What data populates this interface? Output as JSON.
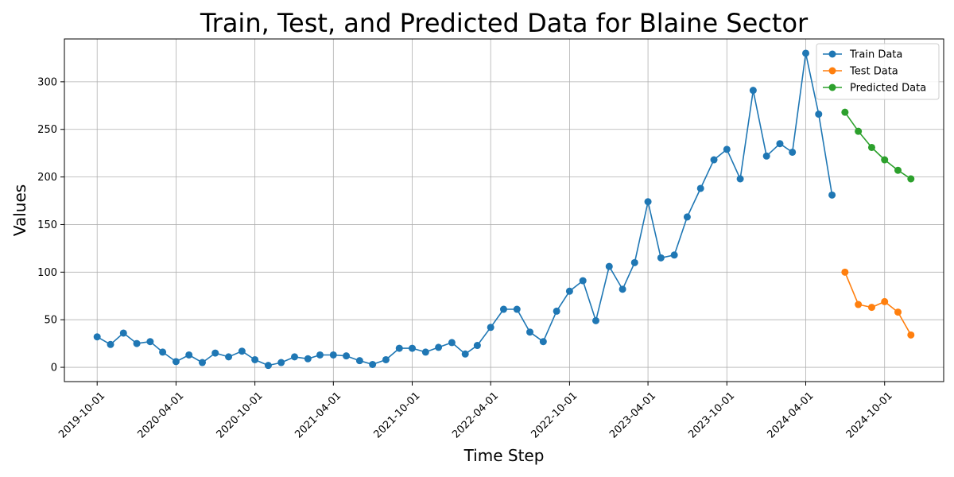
{
  "chart_data": {
    "type": "line",
    "title": "Train, Test, and Predicted Data for Blaine Sector",
    "xlabel": "Time Step",
    "ylabel": "Values",
    "x_tick_labels": [
      "2019-10-01",
      "2020-04-01",
      "2020-10-01",
      "2021-04-01",
      "2021-10-01",
      "2022-04-01",
      "2022-10-01",
      "2023-04-01",
      "2023-10-01",
      "2024-04-01",
      "2024-10-01"
    ],
    "y_ticks": [
      0,
      50,
      100,
      150,
      200,
      250,
      300
    ],
    "xlim": [
      "2019-07-17",
      "2025-02-15"
    ],
    "ylim": [
      -15,
      345
    ],
    "grid": true,
    "legend_position": "top-right",
    "series": [
      {
        "name": "Train Data",
        "color": "#1f77b4",
        "x": [
          "2019-10-01",
          "2019-11-01",
          "2019-12-01",
          "2020-01-01",
          "2020-02-01",
          "2020-03-01",
          "2020-04-01",
          "2020-05-01",
          "2020-06-01",
          "2020-07-01",
          "2020-08-01",
          "2020-09-01",
          "2020-10-01",
          "2020-11-01",
          "2020-12-01",
          "2021-01-01",
          "2021-02-01",
          "2021-03-01",
          "2021-04-01",
          "2021-05-01",
          "2021-06-01",
          "2021-07-01",
          "2021-08-01",
          "2021-09-01",
          "2021-10-01",
          "2021-11-01",
          "2021-12-01",
          "2022-01-01",
          "2022-02-01",
          "2022-03-01",
          "2022-04-01",
          "2022-05-01",
          "2022-06-01",
          "2022-07-01",
          "2022-08-01",
          "2022-09-01",
          "2022-10-01",
          "2022-11-01",
          "2022-12-01",
          "2023-01-01",
          "2023-02-01",
          "2023-03-01",
          "2023-04-01",
          "2023-05-01",
          "2023-06-01",
          "2023-07-01",
          "2023-08-01",
          "2023-09-01",
          "2023-10-01",
          "2023-11-01",
          "2023-12-01",
          "2024-01-01",
          "2024-02-01",
          "2024-03-01",
          "2024-04-01",
          "2024-05-01",
          "2024-06-01"
        ],
        "values": [
          32,
          24,
          36,
          25,
          27,
          16,
          6,
          13,
          5,
          15,
          11,
          17,
          8,
          2,
          5,
          11,
          9,
          13,
          13,
          12,
          7,
          3,
          8,
          20,
          20,
          16,
          21,
          26,
          14,
          23,
          42,
          61,
          61,
          37,
          27,
          59,
          80,
          91,
          49,
          106,
          82,
          110,
          174,
          115,
          118,
          158,
          188,
          218,
          229,
          198,
          291,
          222,
          235,
          226,
          330,
          266,
          181
        ]
      },
      {
        "name": "Test Data",
        "color": "#ff7f0e",
        "x": [
          "2024-07-01",
          "2024-08-01",
          "2024-09-01",
          "2024-10-01",
          "2024-11-01",
          "2024-12-01"
        ],
        "values": [
          100,
          66,
          63,
          69,
          58,
          34
        ]
      },
      {
        "name": "Predicted Data",
        "color": "#2ca02c",
        "x": [
          "2024-07-01",
          "2024-08-01",
          "2024-09-01",
          "2024-10-01",
          "2024-11-01",
          "2024-12-01"
        ],
        "values": [
          268,
          248,
          231,
          218,
          207,
          198
        ]
      }
    ]
  }
}
